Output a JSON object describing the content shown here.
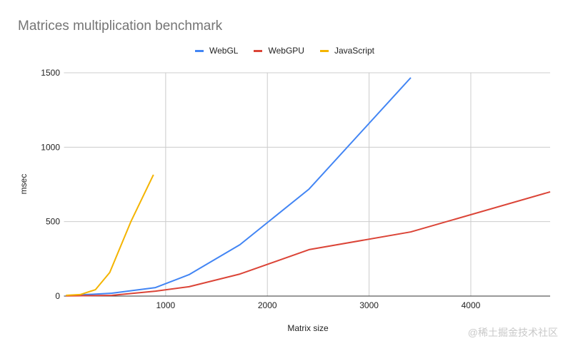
{
  "chart_data": {
    "type": "line",
    "title": "Matrices multiplication benchmark",
    "xlabel": "Matrix size",
    "ylabel": "msec",
    "xlim": [
      0,
      4780
    ],
    "ylim": [
      0,
      1500
    ],
    "xticks": [
      1000,
      2000,
      3000,
      4000
    ],
    "yticks": [
      0,
      500,
      1000,
      1500
    ],
    "grid": true,
    "legend": "top",
    "series": [
      {
        "name": "WebGL",
        "color": "#4285f4",
        "x": [
          20,
          470,
          900,
          1230,
          1730,
          2410,
          3410
        ],
        "y": [
          3,
          19,
          57,
          144,
          345,
          719,
          1467
        ]
      },
      {
        "name": "WebGPU",
        "color": "#db4437",
        "x": [
          20,
          470,
          900,
          1230,
          1730,
          2410,
          3410,
          4780
        ],
        "y": [
          1,
          5,
          33,
          63,
          148,
          312,
          431,
          700
        ]
      },
      {
        "name": "JavaScript",
        "color": "#f4b400",
        "x": [
          20,
          160,
          310,
          450,
          660,
          880
        ],
        "y": [
          5,
          10,
          43,
          158,
          503,
          815
        ]
      }
    ]
  },
  "watermark": "@稀土掘金技术社区"
}
